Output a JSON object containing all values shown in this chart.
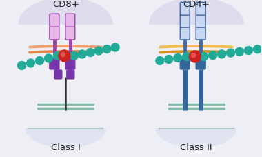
{
  "bg_color": "#eeeef5",
  "panel_bg": "#dddded",
  "left_label": "CD8+",
  "right_label": "CD4+",
  "bottom_left_label": "Class I",
  "bottom_right_label": "Class II",
  "membrane_color_left_outer": "#e8824a",
  "membrane_color_left_inner": "#f0a070",
  "membrane_color_right_outer": "#d4941a",
  "membrane_color_right_inner": "#f0bc50",
  "left_receptor_fill": "#e8b8e8",
  "left_receptor_edge": "#9944aa",
  "left_dark": "#7733aa",
  "right_receptor_fill": "#c8d8f0",
  "right_receptor_edge": "#4466aa",
  "right_dark": "#336699",
  "bead_color": "#22aa99",
  "antigen_color": "#cc2222",
  "mhc_fill": "#e0e4f0",
  "mhc_edge": "#b0c8c0"
}
